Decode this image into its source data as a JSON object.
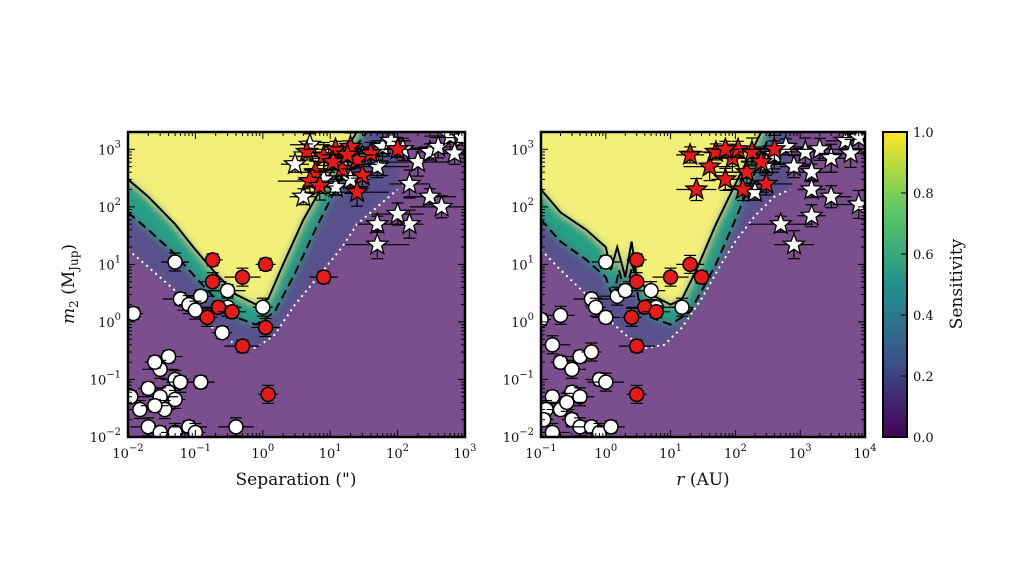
{
  "chart_data": [
    {
      "type": "scatter",
      "panel": "left",
      "xlabel": "Separation (\")",
      "ylabel_main": "m",
      "ylabel_sub": "2",
      "ylabel_open": "(M",
      "ylabel_unit_sub": "Jup",
      "ylabel_close": ")",
      "xscale": "log",
      "yscale": "log",
      "xlim": [
        0.01,
        1000
      ],
      "ylim": [
        0.01,
        2000
      ],
      "x_ticks": [
        {
          "base": "10",
          "exp": "−2"
        },
        {
          "base": "10",
          "exp": "−1"
        },
        {
          "base": "10",
          "exp": "0"
        },
        {
          "base": "10",
          "exp": "1"
        },
        {
          "base": "10",
          "exp": "2"
        },
        {
          "base": "10",
          "exp": "3"
        }
      ],
      "y_ticks": [
        {
          "base": "10",
          "exp": "−2"
        },
        {
          "base": "10",
          "exp": "−1"
        },
        {
          "base": "10",
          "exp": "0"
        },
        {
          "base": "10",
          "exp": "1"
        },
        {
          "base": "10",
          "exp": "2"
        },
        {
          "base": "10",
          "exp": "3"
        }
      ],
      "contours": {
        "solid": [
          [
            0.01,
            300
          ],
          [
            0.02,
            150
          ],
          [
            0.05,
            50
          ],
          [
            0.1,
            18
          ],
          [
            0.2,
            7
          ],
          [
            0.4,
            3
          ],
          [
            0.8,
            2
          ],
          [
            1.2,
            2.5
          ],
          [
            2,
            10
          ],
          [
            4,
            60
          ],
          [
            8,
            250
          ],
          [
            15,
            800
          ],
          [
            25,
            2000
          ]
        ],
        "dashed": [
          [
            0.01,
            80
          ],
          [
            0.02,
            40
          ],
          [
            0.05,
            15
          ],
          [
            0.1,
            6
          ],
          [
            0.2,
            2.5
          ],
          [
            0.4,
            1.2
          ],
          [
            0.8,
            0.9
          ],
          [
            1.5,
            1.5
          ],
          [
            3,
            7
          ],
          [
            6,
            40
          ],
          [
            12,
            200
          ],
          [
            25,
            1200
          ],
          [
            35,
            2000
          ]
        ],
        "dotted": [
          [
            0.01,
            18
          ],
          [
            0.02,
            9
          ],
          [
            0.05,
            3.5
          ],
          [
            0.1,
            1.5
          ],
          [
            0.2,
            0.7
          ],
          [
            0.4,
            0.4
          ],
          [
            0.8,
            0.35
          ],
          [
            1.5,
            0.6
          ],
          [
            3,
            2
          ],
          [
            8,
            8
          ],
          [
            15,
            20
          ],
          [
            25,
            50
          ],
          [
            50,
            100
          ],
          [
            100,
            200
          ]
        ]
      },
      "stars_red": [
        [
          4.5,
          900
        ],
        [
          6,
          400
        ],
        [
          8,
          750
        ],
        [
          12,
          1000
        ],
        [
          15,
          450
        ],
        [
          20,
          1100
        ],
        [
          25,
          650
        ],
        [
          5,
          280
        ],
        [
          7,
          230
        ],
        [
          11,
          600
        ],
        [
          30,
          350
        ],
        [
          25,
          180
        ],
        [
          100,
          1000
        ],
        [
          40,
          850
        ],
        [
          18,
          800
        ]
      ],
      "stars_white": [
        [
          3,
          550
        ],
        [
          5,
          1200
        ],
        [
          8,
          300
        ],
        [
          12,
          220
        ],
        [
          15,
          700
        ],
        [
          20,
          300
        ],
        [
          30,
          750
        ],
        [
          50,
          500
        ],
        [
          60,
          1100
        ],
        [
          80,
          1400
        ],
        [
          120,
          1000
        ],
        [
          200,
          600
        ],
        [
          300,
          900
        ],
        [
          400,
          1100
        ],
        [
          600,
          1700
        ],
        [
          900,
          1600
        ],
        [
          700,
          850
        ],
        [
          150,
          250
        ],
        [
          300,
          150
        ],
        [
          450,
          100
        ],
        [
          150,
          50
        ],
        [
          50,
          50
        ],
        [
          100,
          75
        ],
        [
          50,
          22
        ],
        [
          4,
          150
        ],
        [
          10,
          700
        ]
      ],
      "circles_red": [
        [
          0.18,
          12
        ],
        [
          0.18,
          5
        ],
        [
          0.22,
          1.8
        ],
        [
          0.15,
          1.2
        ],
        [
          0.35,
          1.5
        ],
        [
          0.5,
          6
        ],
        [
          1.1,
          10
        ],
        [
          1.1,
          0.8
        ],
        [
          0.5,
          0.38
        ],
        [
          1.2,
          0.055
        ],
        [
          8,
          6
        ]
      ],
      "circles_white": [
        [
          0.012,
          1.4
        ],
        [
          0.05,
          11
        ],
        [
          0.06,
          2.5
        ],
        [
          0.08,
          2
        ],
        [
          0.12,
          2.8
        ],
        [
          0.1,
          1.6
        ],
        [
          0.25,
          0.65
        ],
        [
          0.3,
          1.8
        ],
        [
          0.3,
          3.5
        ],
        [
          1,
          1.8
        ],
        [
          0.04,
          0.25
        ],
        [
          0.03,
          0.15
        ],
        [
          0.025,
          0.2
        ],
        [
          0.05,
          0.1
        ],
        [
          0.04,
          0.06
        ],
        [
          0.05,
          0.045
        ],
        [
          0.06,
          0.09
        ],
        [
          0.03,
          0.05
        ],
        [
          0.02,
          0.07
        ],
        [
          0.015,
          0.03
        ],
        [
          0.011,
          0.05
        ],
        [
          0.035,
          0.03
        ],
        [
          0.025,
          0.035
        ],
        [
          0.02,
          0.015
        ],
        [
          0.03,
          0.012
        ],
        [
          0.05,
          0.012
        ],
        [
          0.08,
          0.015
        ],
        [
          0.1,
          0.012
        ],
        [
          0.12,
          0.09
        ],
        [
          0.4,
          0.015
        ]
      ]
    },
    {
      "type": "scatter",
      "panel": "right",
      "xlabel_italic": "r",
      "xlabel_rest": " (AU)",
      "xscale": "log",
      "yscale": "log",
      "xlim": [
        0.1,
        10000
      ],
      "ylim": [
        0.01,
        2000
      ],
      "x_ticks": [
        {
          "base": "10",
          "exp": "−1"
        },
        {
          "base": "10",
          "exp": "0"
        },
        {
          "base": "10",
          "exp": "1"
        },
        {
          "base": "10",
          "exp": "2"
        },
        {
          "base": "10",
          "exp": "3"
        },
        {
          "base": "10",
          "exp": "4"
        }
      ],
      "y_ticks": [
        {
          "base": "10",
          "exp": "−2"
        },
        {
          "base": "10",
          "exp": "−1"
        },
        {
          "base": "10",
          "exp": "0"
        },
        {
          "base": "10",
          "exp": "1"
        },
        {
          "base": "10",
          "exp": "2"
        },
        {
          "base": "10",
          "exp": "3"
        }
      ],
      "contours": {
        "solid": [
          [
            0.1,
            200
          ],
          [
            0.2,
            80
          ],
          [
            0.5,
            40
          ],
          [
            1,
            20
          ],
          [
            1.2,
            8
          ],
          [
            1.5,
            20
          ],
          [
            2,
            6
          ],
          [
            2.5,
            25
          ],
          [
            3,
            6
          ],
          [
            5,
            3
          ],
          [
            10,
            2
          ],
          [
            15,
            2.5
          ],
          [
            25,
            8
          ],
          [
            50,
            50
          ],
          [
            100,
            250
          ],
          [
            200,
            1200
          ],
          [
            250,
            2000
          ]
        ],
        "dashed": [
          [
            0.1,
            60
          ],
          [
            0.2,
            25
          ],
          [
            0.5,
            12
          ],
          [
            1,
            6
          ],
          [
            1.3,
            2.5
          ],
          [
            1.6,
            8
          ],
          [
            2,
            3
          ],
          [
            2.6,
            10
          ],
          [
            3.2,
            2.5
          ],
          [
            5,
            1.2
          ],
          [
            10,
            0.9
          ],
          [
            20,
            1.5
          ],
          [
            50,
            10
          ],
          [
            100,
            60
          ],
          [
            200,
            400
          ],
          [
            350,
            2000
          ]
        ],
        "dotted": [
          [
            0.1,
            18
          ],
          [
            0.2,
            8
          ],
          [
            0.5,
            3
          ],
          [
            1,
            1.2
          ],
          [
            2,
            0.6
          ],
          [
            4,
            0.35
          ],
          [
            8,
            0.4
          ],
          [
            15,
            0.8
          ],
          [
            30,
            2.5
          ],
          [
            60,
            10
          ],
          [
            100,
            25
          ],
          [
            200,
            70
          ],
          [
            400,
            150
          ],
          [
            700,
            200
          ]
        ]
      },
      "stars_red": [
        [
          20,
          800
        ],
        [
          25,
          200
        ],
        [
          40,
          500
        ],
        [
          50,
          900
        ],
        [
          70,
          300
        ],
        [
          90,
          700
        ],
        [
          110,
          1000
        ],
        [
          150,
          400
        ],
        [
          180,
          900
        ],
        [
          250,
          600
        ],
        [
          300,
          250
        ],
        [
          400,
          1000
        ],
        [
          70,
          1000
        ],
        [
          130,
          200
        ]
      ],
      "stars_white": [
        [
          200,
          180
        ],
        [
          300,
          550
        ],
        [
          400,
          800
        ],
        [
          600,
          1100
        ],
        [
          800,
          500
        ],
        [
          1200,
          900
        ],
        [
          1500,
          400
        ],
        [
          2000,
          1000
        ],
        [
          3000,
          700
        ],
        [
          5000,
          1400
        ],
        [
          8000,
          1600
        ],
        [
          6000,
          850
        ],
        [
          1500,
          200
        ],
        [
          3000,
          150
        ],
        [
          8000,
          110
        ],
        [
          500,
          50
        ],
        [
          1500,
          70
        ],
        [
          800,
          22
        ]
      ],
      "circles_red": [
        [
          3,
          12
        ],
        [
          3,
          5
        ],
        [
          4,
          1.8
        ],
        [
          2.5,
          1.2
        ],
        [
          6,
          1.5
        ],
        [
          10,
          6
        ],
        [
          30,
          6
        ],
        [
          20,
          10
        ],
        [
          3,
          0.38
        ],
        [
          3,
          0.055
        ]
      ],
      "circles_white": [
        [
          0.1,
          1.1
        ],
        [
          0.2,
          1.3
        ],
        [
          0.6,
          2.5
        ],
        [
          0.7,
          1.8
        ],
        [
          1,
          11
        ],
        [
          1.5,
          2.8
        ],
        [
          2,
          3.5
        ],
        [
          5,
          3.5
        ],
        [
          6,
          1.8
        ],
        [
          15,
          1.8
        ],
        [
          1,
          1.2
        ],
        [
          0.15,
          0.4
        ],
        [
          0.2,
          0.2
        ],
        [
          0.3,
          0.15
        ],
        [
          0.4,
          0.25
        ],
        [
          0.6,
          0.3
        ],
        [
          0.8,
          0.1
        ],
        [
          1,
          0.09
        ],
        [
          0.3,
          0.06
        ],
        [
          0.4,
          0.05
        ],
        [
          0.15,
          0.05
        ],
        [
          0.12,
          0.03
        ],
        [
          0.2,
          0.03
        ],
        [
          0.25,
          0.04
        ],
        [
          0.3,
          0.02
        ],
        [
          0.4,
          0.015
        ],
        [
          0.6,
          0.015
        ],
        [
          0.8,
          0.012
        ],
        [
          1.2,
          0.015
        ],
        [
          0.15,
          0.012
        ],
        [
          0.11,
          0.02
        ]
      ]
    }
  ],
  "colorbar": {
    "label": "Sensitivity",
    "ticks": [
      "0.0",
      "0.2",
      "0.4",
      "0.6",
      "0.8",
      "1.0"
    ],
    "tick_values": [
      0,
      0.2,
      0.4,
      0.6,
      0.8,
      1.0
    ],
    "colors": [
      "#440154",
      "#3b528b",
      "#21918c",
      "#5ec962",
      "#fde725"
    ]
  },
  "colors": {
    "background_low": "#7b4f8d",
    "background_high": "#f3f07a",
    "red_marker": "#e21b1b",
    "white_marker": "#ffffff",
    "line": "#000000"
  }
}
